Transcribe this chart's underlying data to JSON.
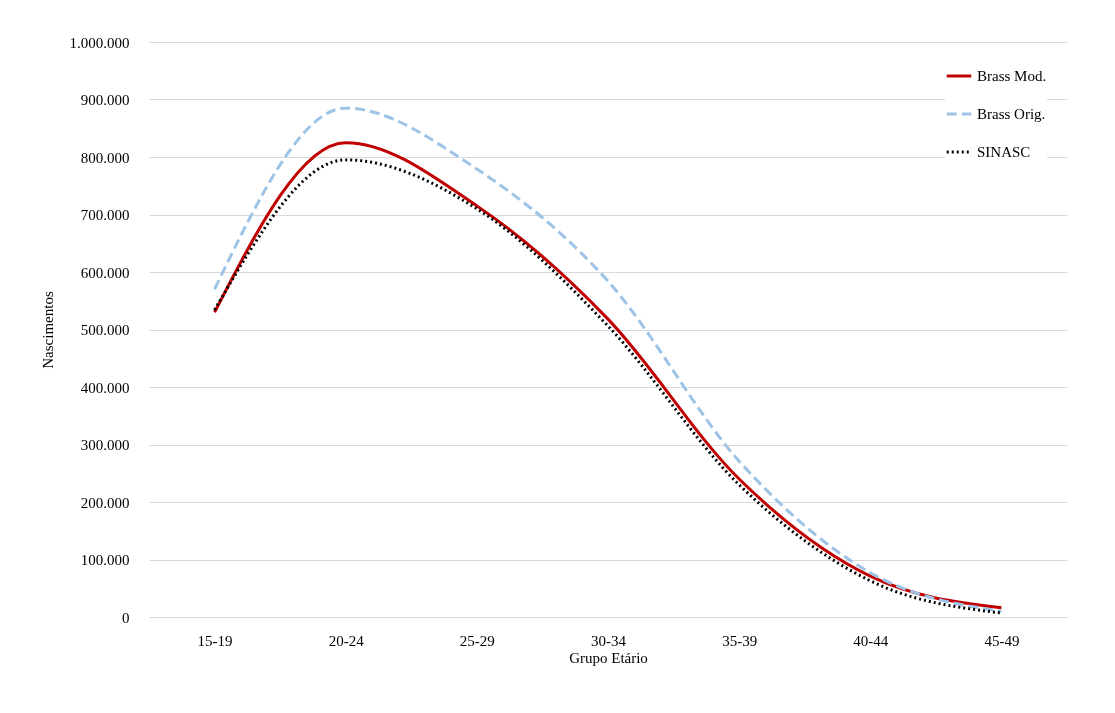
{
  "chart_data": {
    "type": "line",
    "xlabel": "Grupo Etário",
    "ylabel": "Nascimentos",
    "categories": [
      "15-19",
      "20-24",
      "25-29",
      "30-34",
      "35-39",
      "40-44",
      "45-49"
    ],
    "series": [
      {
        "name": "Brass Mod.",
        "color": "#c00000",
        "line_style": "solid",
        "values": [
          530000,
          825000,
          715000,
          518000,
          240000,
          71000,
          16000
        ]
      },
      {
        "name": "Brass Orig.",
        "color": "#9dc3e6",
        "line_style": "dashed",
        "values": [
          570000,
          885000,
          779000,
          584000,
          271000,
          77000,
          10000
        ]
      },
      {
        "name": "SINASC",
        "color": "#000000",
        "line_style": "dotted",
        "values": [
          534000,
          795000,
          710000,
          506000,
          230000,
          63000,
          7000
        ]
      }
    ],
    "ylim": [
      0,
      1000000
    ],
    "yticks": [
      0,
      {
        "value": 100000,
        "label": "100.000"
      },
      {
        "value": 200000,
        "label": "200.000"
      },
      {
        "value": 300000,
        "label": "300.000"
      },
      {
        "value": 400000,
        "label": "400.000"
      },
      {
        "value": 500000,
        "label": "500.000"
      },
      {
        "value": 600000,
        "label": "600.000"
      },
      {
        "value": 700000,
        "label": "700.000"
      },
      {
        "value": 800000,
        "label": "800.000"
      },
      {
        "value": 900000,
        "label": "900.000"
      },
      {
        "value": 1000000,
        "label": "1.000.000"
      }
    ],
    "grid": "y",
    "legend": "top right"
  }
}
